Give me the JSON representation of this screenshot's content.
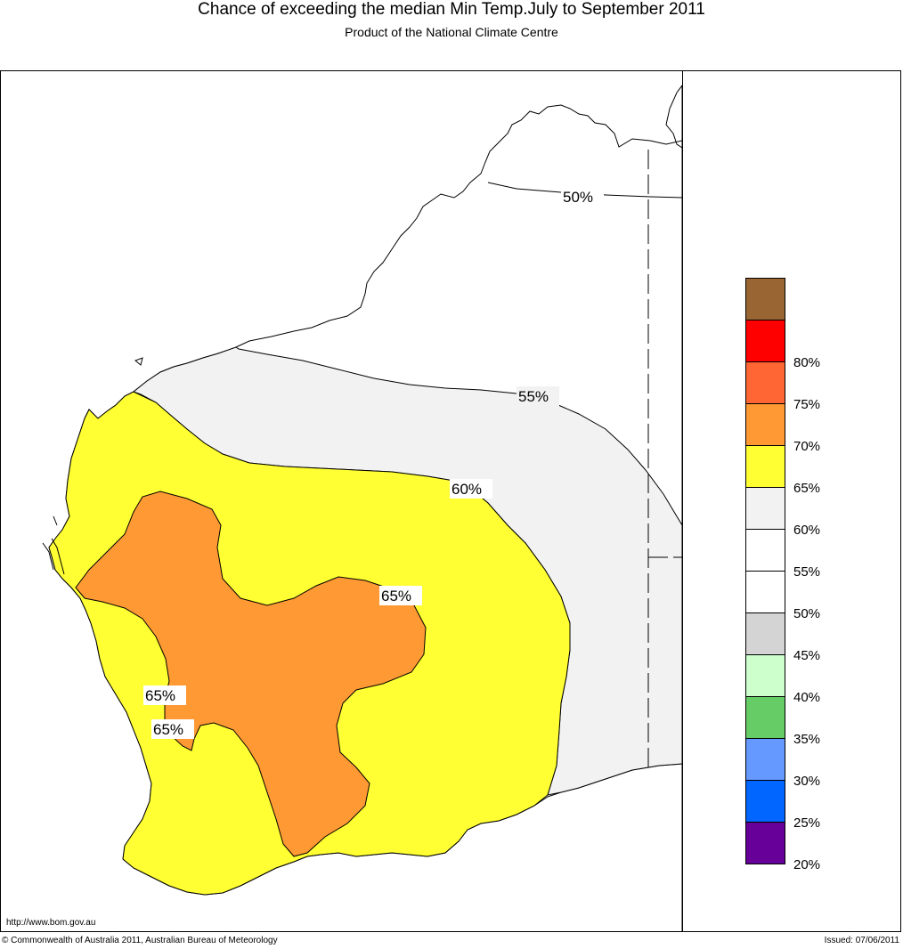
{
  "header": {
    "title": "Chance of exceeding the median Min Temp.July to September 2011",
    "subtitle": "Product of the National Climate Centre"
  },
  "map": {
    "url_label": "http://www.bom.gov.au",
    "contour_labels": {
      "c50": "50%",
      "c55": "55%",
      "c60": "60%",
      "c65_east": "65%",
      "c65_west_upper": "65%",
      "c65_west_lower": "65%"
    },
    "colors": {
      "land_50_55": "#ffffff",
      "band_55_60": "#f2f2f2",
      "band_60_65": "#ffff33",
      "band_65_70": "#ff9933"
    }
  },
  "legend": {
    "items": [
      {
        "color": "#996633",
        "label": ""
      },
      {
        "color": "#ff0000",
        "label": "80%"
      },
      {
        "color": "#ff6633",
        "label": "75%"
      },
      {
        "color": "#ff9933",
        "label": "70%"
      },
      {
        "color": "#ffff33",
        "label": "65%"
      },
      {
        "color": "#f2f2f2",
        "label": "60%"
      },
      {
        "color": "#ffffff",
        "label": "55%"
      },
      {
        "color": "#ffffff",
        "label": "50%"
      },
      {
        "color": "#d4d4d4",
        "label": "45%"
      },
      {
        "color": "#ccffcc",
        "label": "40%"
      },
      {
        "color": "#66cc66",
        "label": "35%"
      },
      {
        "color": "#6699ff",
        "label": "30%"
      },
      {
        "color": "#0066ff",
        "label": "25%"
      },
      {
        "color": "#660099",
        "label": "20%"
      }
    ]
  },
  "footer": {
    "copyright": "© Commonwealth of Australia 2011, Australian Bureau of Meteorology",
    "issued": "Issued: 07/06/2011"
  }
}
